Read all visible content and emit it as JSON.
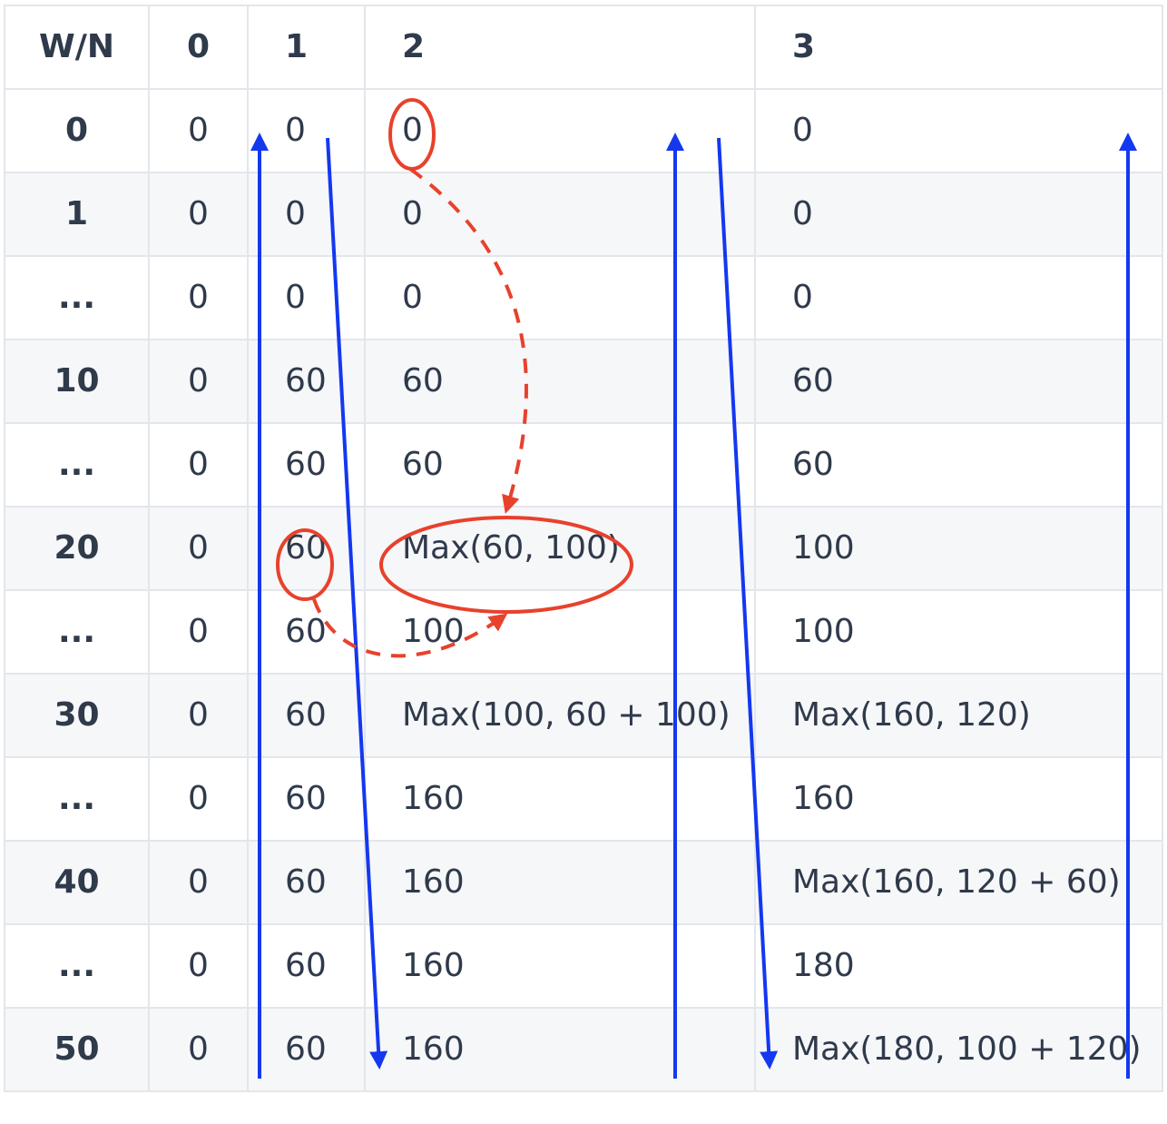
{
  "table": {
    "headers": [
      "W/N",
      "0",
      "1",
      "2",
      "3"
    ],
    "rows": [
      {
        "w": "0",
        "cells": [
          "0",
          "0",
          "0",
          "0"
        ]
      },
      {
        "w": "1",
        "cells": [
          "0",
          "0",
          "0",
          "0"
        ]
      },
      {
        "w": "...",
        "cells": [
          "0",
          "0",
          "0",
          "0"
        ]
      },
      {
        "w": "10",
        "cells": [
          "0",
          "60",
          "60",
          "60"
        ]
      },
      {
        "w": "...",
        "cells": [
          "0",
          "60",
          "60",
          "60"
        ]
      },
      {
        "w": "20",
        "cells": [
          "0",
          "60",
          "Max(60, 100)",
          "100"
        ]
      },
      {
        "w": "...",
        "cells": [
          "0",
          "60",
          "100",
          "100"
        ]
      },
      {
        "w": "30",
        "cells": [
          "0",
          "60",
          "Max(100, 60 + 100)",
          "Max(160, 120)"
        ]
      },
      {
        "w": "...",
        "cells": [
          "0",
          "60",
          "160",
          "160"
        ]
      },
      {
        "w": "40",
        "cells": [
          "0",
          "60",
          "160",
          "Max(160, 120 + 60)"
        ]
      },
      {
        "w": "...",
        "cells": [
          "0",
          "60",
          "160",
          "180"
        ]
      },
      {
        "w": "50",
        "cells": [
          "0",
          "60",
          "160",
          "Max(180, 100 + 120)"
        ]
      }
    ]
  },
  "colors": {
    "arrow": "#1438f0",
    "highlight": "#e8412c",
    "grid": "#e3e6ea",
    "stripe": "#f6f7f9",
    "text": "#2f3a4b"
  }
}
